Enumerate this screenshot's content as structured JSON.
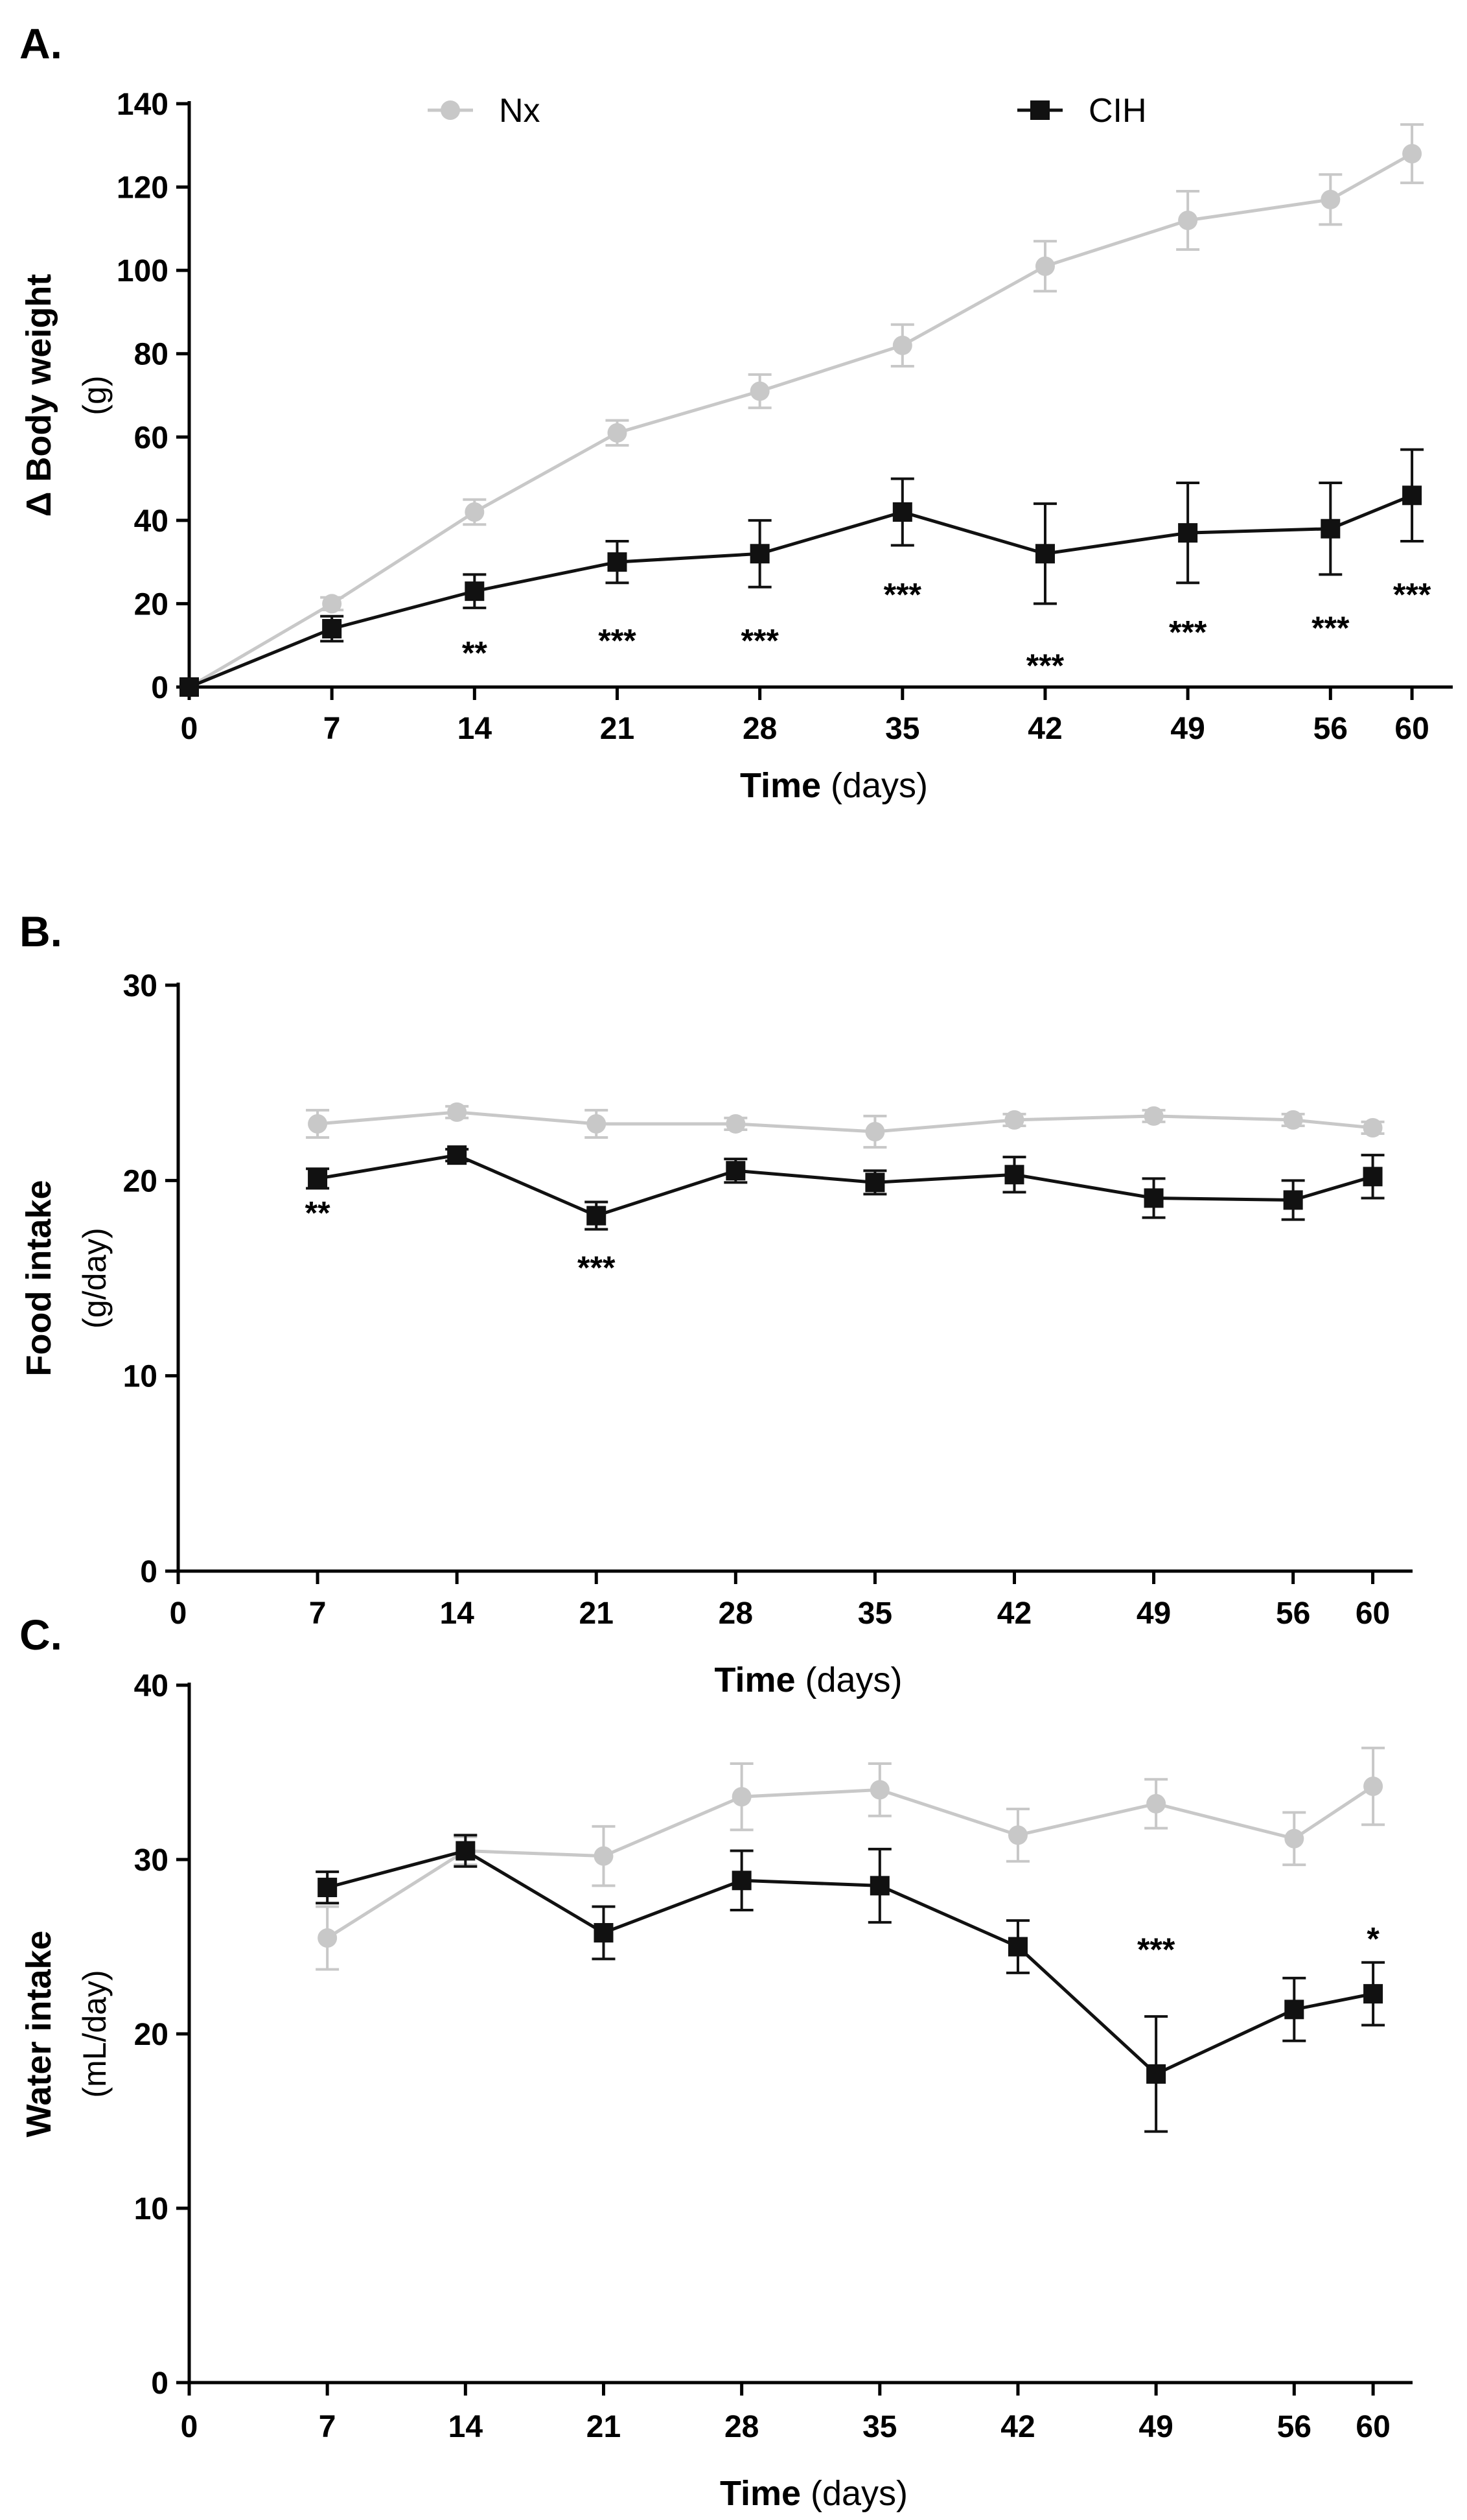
{
  "legend": {
    "entries": [
      {
        "name": "Nx",
        "color": "#c8c8c8",
        "marker": "circle"
      },
      {
        "name": "CIH",
        "color": "#111111",
        "marker": "square"
      }
    ]
  },
  "chart_data": [
    {
      "panel_label": "A.",
      "type": "line",
      "x": [
        0,
        7,
        14,
        21,
        28,
        35,
        42,
        49,
        56,
        60
      ],
      "x_ticks": [
        0,
        7,
        14,
        21,
        28,
        35,
        42,
        49,
        56,
        60
      ],
      "xlim": [
        0,
        62
      ],
      "ylim": [
        0,
        140
      ],
      "y_ticks": [
        0,
        20,
        40,
        60,
        80,
        100,
        120,
        140
      ],
      "xlabel": {
        "bold": "Time",
        "normal": " (days)"
      },
      "ylabel": {
        "bold": "Δ Body weight",
        "normal": "(g)"
      },
      "series": [
        {
          "name": "Nx",
          "color": "#c8c8c8",
          "marker": "circle",
          "values": [
            0,
            20,
            42,
            61,
            71,
            82,
            101,
            112,
            117,
            128
          ],
          "errors": [
            0,
            1.5,
            3,
            3,
            4,
            5,
            6,
            7,
            6,
            7
          ]
        },
        {
          "name": "CIH",
          "color": "#111111",
          "marker": "square",
          "values": [
            0,
            14,
            23,
            30,
            32,
            42,
            32,
            37,
            38,
            46
          ],
          "errors": [
            0,
            3,
            4,
            5,
            8,
            8,
            12,
            12,
            11,
            11
          ]
        }
      ],
      "annotations": [
        {
          "x": 14,
          "text": "**",
          "y": 8
        },
        {
          "x": 21,
          "text": "***",
          "y": 11
        },
        {
          "x": 28,
          "text": "***",
          "y": 11
        },
        {
          "x": 35,
          "text": "***",
          "y": 22
        },
        {
          "x": 42,
          "text": "***",
          "y": 5
        },
        {
          "x": 49,
          "text": "***",
          "y": 13
        },
        {
          "x": 56,
          "text": "***",
          "y": 14
        },
        {
          "x": 60,
          "text": "***",
          "y": 22
        }
      ]
    },
    {
      "panel_label": "B.",
      "type": "line",
      "x": [
        7,
        14,
        21,
        28,
        35,
        42,
        49,
        56,
        60
      ],
      "x_ticks": [
        0,
        7,
        14,
        21,
        28,
        35,
        42,
        49,
        56,
        60
      ],
      "xlim": [
        0,
        62
      ],
      "ylim": [
        0,
        30
      ],
      "y_ticks": [
        0,
        10,
        20,
        30
      ],
      "xlabel": {
        "bold": "Time",
        "normal": " (days)"
      },
      "ylabel": {
        "bold": "Food intake",
        "normal": "(g/day)"
      },
      "series": [
        {
          "name": "Nx",
          "color": "#c8c8c8",
          "marker": "circle",
          "values": [
            22.9,
            23.5,
            22.9,
            22.9,
            22.5,
            23.1,
            23.3,
            23.1,
            22.7
          ],
          "errors": [
            0.7,
            0.3,
            0.7,
            0.3,
            0.8,
            0.3,
            0.3,
            0.3,
            0.3
          ]
        },
        {
          "name": "CIH",
          "color": "#111111",
          "marker": "square",
          "values": [
            20.1,
            21.3,
            18.2,
            20.5,
            19.9,
            20.3,
            19.1,
            19.0,
            20.2
          ],
          "errors": [
            0.5,
            0.3,
            0.7,
            0.6,
            0.6,
            0.9,
            1.0,
            1.0,
            1.1
          ]
        }
      ],
      "annotations": [
        {
          "x": 7,
          "text": "**",
          "y": 18.3
        },
        {
          "x": 21,
          "text": "***",
          "y": 15.5
        }
      ]
    },
    {
      "panel_label": "C.",
      "type": "line",
      "x": [
        7,
        14,
        21,
        28,
        35,
        42,
        49,
        56,
        60
      ],
      "x_ticks": [
        0,
        7,
        14,
        21,
        28,
        35,
        42,
        49,
        56,
        60
      ],
      "xlim": [
        0,
        62
      ],
      "ylim": [
        0,
        40
      ],
      "y_ticks": [
        0,
        10,
        20,
        30,
        40
      ],
      "xlabel": {
        "bold": "Time",
        "normal": " (days)"
      },
      "ylabel": {
        "bold": "Water intake",
        "normal": "(mL/day)"
      },
      "series": [
        {
          "name": "Nx",
          "color": "#c8c8c8",
          "marker": "circle",
          "values": [
            25.5,
            30.5,
            30.2,
            33.6,
            34.0,
            31.4,
            33.2,
            31.2,
            34.2
          ],
          "errors": [
            1.8,
            0.8,
            1.7,
            1.9,
            1.5,
            1.5,
            1.4,
            1.5,
            2.2
          ]
        },
        {
          "name": "CIH",
          "color": "#111111",
          "marker": "square",
          "values": [
            28.4,
            30.5,
            25.8,
            28.8,
            28.5,
            25.0,
            17.7,
            21.4,
            22.3
          ],
          "errors": [
            0.9,
            0.9,
            1.5,
            1.7,
            2.1,
            1.5,
            3.3,
            1.8,
            1.8
          ]
        }
      ],
      "annotations": [
        {
          "x": 49,
          "text": "***",
          "y": 24.8
        },
        {
          "x": 60,
          "text": "*",
          "y": 25.4
        }
      ]
    }
  ]
}
